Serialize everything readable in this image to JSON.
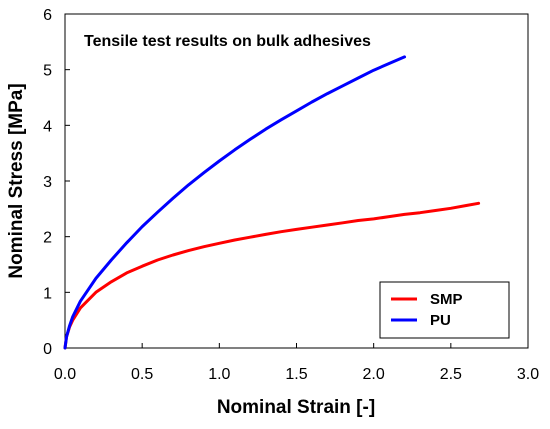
{
  "chart_data": {
    "type": "line",
    "title": "Tensile test results on bulk adhesives",
    "xlabel": "Nominal Strain [-]",
    "ylabel": "Nominal Stress [MPa]",
    "xlim": [
      0.0,
      3.0
    ],
    "ylim": [
      0,
      6
    ],
    "xticks": [
      "0.0",
      "0.5",
      "1.0",
      "1.5",
      "2.0",
      "2.5",
      "3.0"
    ],
    "yticks": [
      "0",
      "1",
      "2",
      "3",
      "4",
      "5",
      "6"
    ],
    "grid": false,
    "legend_position": "bottom-right",
    "series": [
      {
        "name": "SMP",
        "color": "#ff0000",
        "x": [
          0.0,
          0.01,
          0.03,
          0.05,
          0.1,
          0.2,
          0.3,
          0.4,
          0.5,
          0.6,
          0.7,
          0.8,
          0.9,
          1.0,
          1.1,
          1.2,
          1.3,
          1.4,
          1.5,
          1.6,
          1.7,
          1.8,
          1.9,
          2.0,
          2.1,
          2.2,
          2.3,
          2.4,
          2.5,
          2.6,
          2.68
        ],
        "y": [
          0.0,
          0.2,
          0.38,
          0.5,
          0.72,
          1.0,
          1.19,
          1.35,
          1.47,
          1.58,
          1.67,
          1.75,
          1.82,
          1.88,
          1.94,
          1.99,
          2.04,
          2.09,
          2.13,
          2.17,
          2.21,
          2.25,
          2.29,
          2.32,
          2.36,
          2.4,
          2.43,
          2.47,
          2.51,
          2.56,
          2.6
        ]
      },
      {
        "name": "PU",
        "color": "#0000ff",
        "x": [
          0.0,
          0.01,
          0.03,
          0.05,
          0.1,
          0.2,
          0.3,
          0.4,
          0.5,
          0.6,
          0.7,
          0.8,
          0.9,
          1.0,
          1.1,
          1.2,
          1.3,
          1.4,
          1.5,
          1.6,
          1.7,
          1.8,
          1.9,
          2.0,
          2.1,
          2.2
        ],
        "y": [
          0.0,
          0.2,
          0.4,
          0.56,
          0.84,
          1.25,
          1.58,
          1.89,
          2.18,
          2.44,
          2.69,
          2.93,
          3.15,
          3.36,
          3.56,
          3.75,
          3.93,
          4.1,
          4.26,
          4.42,
          4.57,
          4.71,
          4.85,
          4.99,
          5.11,
          5.23
        ]
      }
    ]
  }
}
